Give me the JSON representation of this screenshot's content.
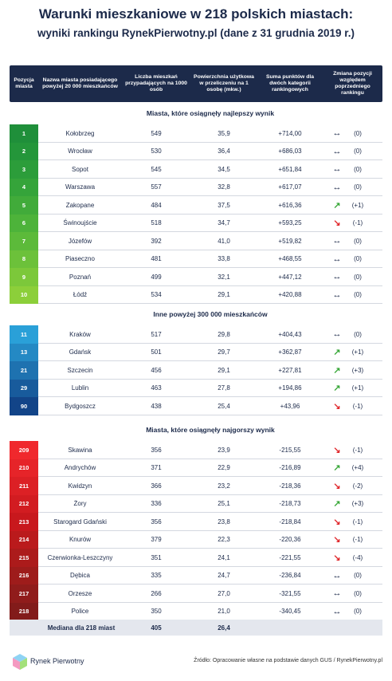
{
  "title": {
    "line1": "Warunki mieszkaniowe w 218 polskich miastach:",
    "line2": "wyniki rankingu RynekPierwotny.pl (dane z 31 grudnia 2019 r.)"
  },
  "table": {
    "header": [
      "Pozycja miasta",
      "Nazwa miasta posiadającego powyżej 20 000 mieszkańców",
      "Liczba mieszkań przypadających na 1000 osób",
      "Powierzchnia użytkowa w przeliczeniu na 1 osobę (mkw.)",
      "Suma punktów dla dwóch kategorii rankingowych",
      "Zmiana pozycji względem poprzedniego rankingu"
    ],
    "sections": [
      {
        "title": "Miasta, które osiągnęły najlepszy wynik",
        "rows": [
          [
            "1",
            "Kołobrzeg",
            "549",
            "35,9",
            "+714,00",
            "(0)"
          ],
          [
            "2",
            "Wrocław",
            "530",
            "36,4",
            "+686,03",
            "(0)"
          ],
          [
            "3",
            "Sopot",
            "545",
            "34,5",
            "+651,84",
            "(0)"
          ],
          [
            "4",
            "Warszawa",
            "557",
            "32,8",
            "+617,07",
            "(0)"
          ],
          [
            "5",
            "Zakopane",
            "484",
            "37,5",
            "+616,36",
            "(+1)"
          ],
          [
            "6",
            "Świnoujście",
            "518",
            "34,7",
            "+593,25",
            "(-1)"
          ],
          [
            "7",
            "Józefów",
            "392",
            "41,0",
            "+519,82",
            "(0)"
          ],
          [
            "8",
            "Piaseczno",
            "481",
            "33,8",
            "+468,55",
            "(0)"
          ],
          [
            "9",
            "Poznań",
            "499",
            "32,1",
            "+447,12",
            "(0)"
          ],
          [
            "10",
            "Łódź",
            "534",
            "29,1",
            "+420,88",
            "(0)"
          ]
        ]
      },
      {
        "title": "Inne powyżej 300 000 mieszkańców",
        "rows": [
          [
            "11",
            "Kraków",
            "517",
            "29,8",
            "+404,43",
            "(0)"
          ],
          [
            "13",
            "Gdańsk",
            "501",
            "29,7",
            "+362,87",
            "(+1)"
          ],
          [
            "21",
            "Szczecin",
            "456",
            "29,1",
            "+227,81",
            "(+3)"
          ],
          [
            "29",
            "Lublin",
            "463",
            "27,8",
            "+194,86",
            "(+1)"
          ],
          [
            "90",
            "Bydgoszcz",
            "438",
            "25,4",
            "+43,96",
            "(-1)"
          ]
        ]
      },
      {
        "title": "Miasta, które osiągnęły najgorszy wynik",
        "rows": [
          [
            "209",
            "Skawina",
            "356",
            "23,9",
            "-215,55",
            "(-1)"
          ],
          [
            "210",
            "Andrychów",
            "371",
            "22,9",
            "-216,89",
            "(+4)"
          ],
          [
            "211",
            "Kwidzyn",
            "366",
            "23,2",
            "-218,36",
            "(-2)"
          ],
          [
            "212",
            "Żory",
            "336",
            "25,1",
            "-218,73",
            "(+3)"
          ],
          [
            "213",
            "Starogard Gdański",
            "356",
            "23,8",
            "-218,84",
            "(-1)"
          ],
          [
            "214",
            "Knurów",
            "379",
            "22,3",
            "-220,36",
            "(-1)"
          ],
          [
            "215",
            "Czerwionka-Leszczyny",
            "351",
            "24,1",
            "-221,55",
            "(-4)"
          ],
          [
            "216",
            "Dębica",
            "335",
            "24,7",
            "-236,84",
            "(0)"
          ],
          [
            "217",
            "Orzesze",
            "266",
            "27,0",
            "-321,55",
            "(0)"
          ],
          [
            "218",
            "Police",
            "350",
            "21,0",
            "-340,45",
            "(0)"
          ]
        ]
      }
    ],
    "median": {
      "label": "Mediana dla 218 miast",
      "flats": "405",
      "area": "26,4"
    }
  },
  "footer": {
    "logo": "Rynek Pierwotny",
    "source": "Źródło: Opracowanie własne na podstawie danych GUS / RynekPierwotny.pl"
  }
}
